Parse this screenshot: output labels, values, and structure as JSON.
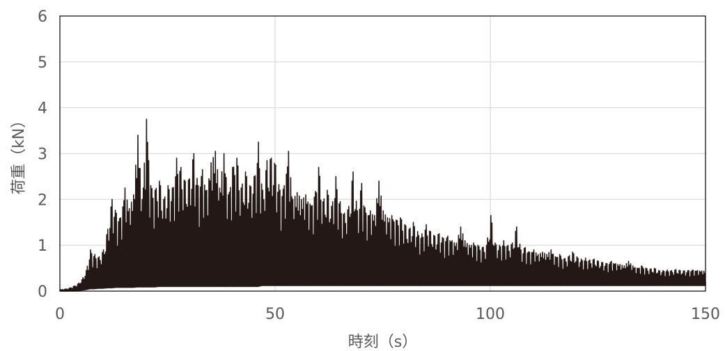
{
  "chart_data": {
    "type": "line",
    "title": "",
    "xlabel": "時刻（s）",
    "ylabel": "荷重（kN）",
    "xlim": [
      0,
      150
    ],
    "ylim": [
      0,
      6
    ],
    "xticks": [
      0,
      50,
      100,
      150
    ],
    "yticks": [
      0,
      1,
      2,
      3,
      4,
      5,
      6
    ],
    "x_tick_labels": [
      "0",
      "50",
      "100",
      "150"
    ],
    "y_tick_labels": [
      "0",
      "1",
      "2",
      "3",
      "4",
      "5",
      "6"
    ],
    "grid": {
      "x": true,
      "y": true
    },
    "legend": "none",
    "series": [
      {
        "color": "#231815",
        "x": [
          0,
          1,
          2,
          3,
          4,
          5,
          6,
          7,
          8,
          9,
          10,
          11,
          12,
          13,
          14,
          15,
          16,
          17,
          18,
          19,
          20,
          21,
          22,
          23,
          24,
          25,
          26,
          27,
          28,
          29,
          30,
          31,
          32,
          33,
          34,
          35,
          36,
          37,
          38,
          39,
          40,
          41,
          42,
          43,
          44,
          45,
          46,
          47,
          48,
          49,
          50,
          51,
          52,
          53,
          54,
          55,
          56,
          57,
          58,
          59,
          60,
          61,
          62,
          63,
          64,
          65,
          66,
          67,
          68,
          69,
          70,
          71,
          72,
          73,
          74,
          75,
          76,
          77,
          78,
          79,
          80,
          81,
          82,
          83,
          84,
          85,
          86,
          87,
          88,
          89,
          90,
          91,
          92,
          93,
          94,
          95,
          96,
          97,
          98,
          99,
          100,
          101,
          102,
          103,
          104,
          105,
          106,
          107,
          108,
          109,
          110,
          111,
          112,
          113,
          114,
          115,
          116,
          117,
          118,
          119,
          120,
          121,
          122,
          123,
          124,
          125,
          126,
          127,
          128,
          129,
          130,
          131,
          132,
          133,
          134,
          135,
          136,
          137,
          138,
          139,
          140,
          141,
          142,
          143,
          144,
          145,
          146,
          147,
          148,
          149,
          150
        ],
        "peaks": [
          0.03,
          0.04,
          0.06,
          0.1,
          0.15,
          0.25,
          0.45,
          0.9,
          0.8,
          0.75,
          0.9,
          1.35,
          2.0,
          1.7,
          1.6,
          2.25,
          1.8,
          2.1,
          3.4,
          2.0,
          3.75,
          2.3,
          2.2,
          2.4,
          2.0,
          2.3,
          2.25,
          2.9,
          2.7,
          2.4,
          2.45,
          3.0,
          2.3,
          2.65,
          2.2,
          2.8,
          3.05,
          2.25,
          3.0,
          2.1,
          2.7,
          2.9,
          2.25,
          2.6,
          2.3,
          2.5,
          3.25,
          2.2,
          2.85,
          2.9,
          2.75,
          2.2,
          2.3,
          3.05,
          2.0,
          2.15,
          2.0,
          2.1,
          1.9,
          2.05,
          2.7,
          1.95,
          2.2,
          1.85,
          2.5,
          1.95,
          1.7,
          1.85,
          2.6,
          1.75,
          2.35,
          1.7,
          1.75,
          1.65,
          2.4,
          1.75,
          1.6,
          1.65,
          1.55,
          1.6,
          1.45,
          1.35,
          1.5,
          1.3,
          1.25,
          1.45,
          1.3,
          1.2,
          1.25,
          1.15,
          1.2,
          1.1,
          1.05,
          1.4,
          1.1,
          1.0,
          1.05,
          1.0,
          0.95,
          1.0,
          1.65,
          1.05,
          1.0,
          1.1,
          1.0,
          1.05,
          1.4,
          0.9,
          0.95,
          0.85,
          0.9,
          0.8,
          0.85,
          0.8,
          0.9,
          0.75,
          0.8,
          0.7,
          0.75,
          0.85,
          0.75,
          0.7,
          0.72,
          0.68,
          0.7,
          0.65,
          0.62,
          0.6,
          0.65,
          0.6,
          0.58,
          0.55,
          0.65,
          0.55,
          0.5,
          0.55,
          0.5,
          0.48,
          0.5,
          0.45,
          0.45,
          0.46,
          0.45,
          0.47,
          0.45,
          0.44,
          0.45,
          0.46,
          0.45,
          0.44,
          0.43
        ],
        "troughs": [
          0.0,
          0.0,
          0.0,
          0.0,
          0.0,
          0.02,
          0.03,
          0.05,
          0.05,
          0.06,
          0.06,
          0.07,
          0.07,
          0.08,
          0.08,
          0.08,
          0.08,
          0.08,
          0.09,
          0.09,
          0.09,
          0.09,
          0.09,
          0.1,
          0.1,
          0.1,
          0.1,
          0.1,
          0.1,
          0.1,
          0.1,
          0.1,
          0.1,
          0.1,
          0.1,
          0.1,
          0.1,
          0.1,
          0.1,
          0.1,
          0.1,
          0.1,
          0.1,
          0.1,
          0.1,
          0.1,
          0.1,
          0.12,
          0.12,
          0.12,
          0.12,
          0.12,
          0.12,
          0.12,
          0.12,
          0.12,
          0.12,
          0.12,
          0.12,
          0.12,
          0.12,
          0.12,
          0.12,
          0.12,
          0.12,
          0.12,
          0.12,
          0.12,
          0.12,
          0.12,
          0.12,
          0.12,
          0.12,
          0.12,
          0.12,
          0.12,
          0.12,
          0.12,
          0.12,
          0.12,
          0.12,
          0.12,
          0.12,
          0.12,
          0.12,
          0.12,
          0.12,
          0.12,
          0.12,
          0.12,
          0.12,
          0.12,
          0.12,
          0.12,
          0.12,
          0.12,
          0.12,
          0.12,
          0.12,
          0.12,
          0.12,
          0.12,
          0.12,
          0.12,
          0.12,
          0.12,
          0.12,
          0.12,
          0.12,
          0.12,
          0.12,
          0.12,
          0.12,
          0.12,
          0.12,
          0.12,
          0.12,
          0.12,
          0.12,
          0.12,
          0.12,
          0.12,
          0.12,
          0.12,
          0.12,
          0.12,
          0.12,
          0.12,
          0.12,
          0.12,
          0.12,
          0.12,
          0.12,
          0.12,
          0.12,
          0.12,
          0.12,
          0.12,
          0.12,
          0.12,
          0.12,
          0.12,
          0.12,
          0.12,
          0.12,
          0.12,
          0.12,
          0.12,
          0.12,
          0.12,
          0.12,
          0.12
        ]
      }
    ]
  }
}
